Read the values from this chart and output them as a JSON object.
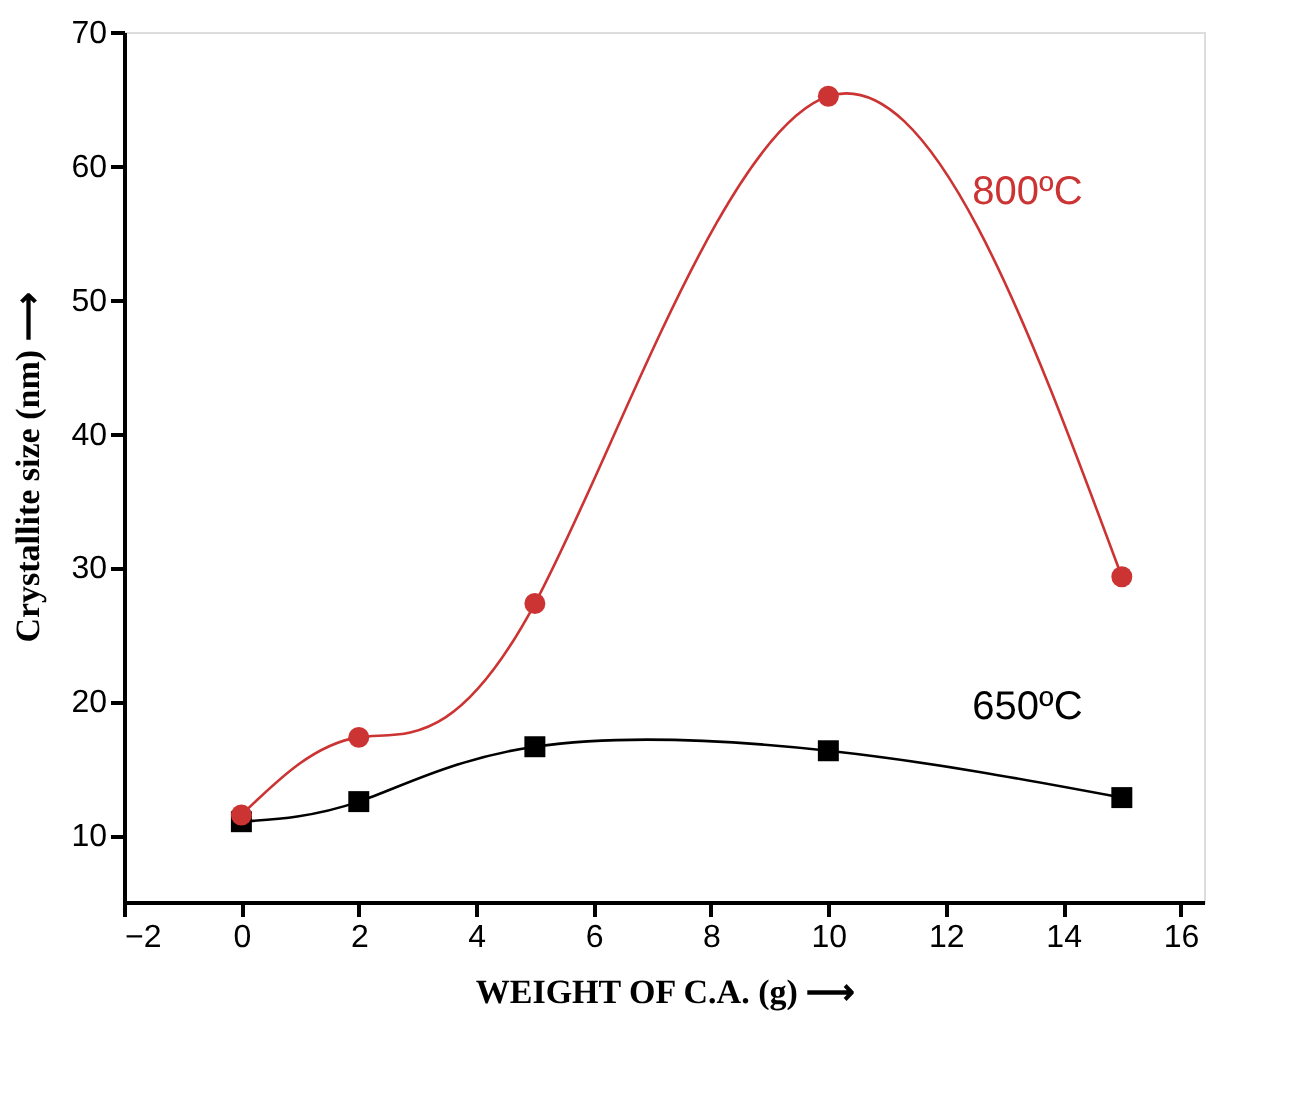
{
  "chart_data": {
    "type": "line",
    "xlabel": "WEIGHT OF C.A. (g) ⟶",
    "ylabel": "Crystallite size (nm) ⟶",
    "x": [
      0,
      2,
      5,
      10,
      15
    ],
    "series": [
      {
        "name": "800ºC",
        "color": "#cc3333",
        "marker": "circle",
        "values": [
          11.5,
          17.3,
          27.3,
          65.2,
          29.3
        ]
      },
      {
        "name": "650ºC",
        "color": "#000000",
        "marker": "square",
        "values": [
          11.0,
          12.5,
          16.6,
          16.3,
          12.8
        ]
      }
    ],
    "xlim": [
      -2,
      16.4
    ],
    "xticks": [
      -2,
      0,
      2,
      4,
      6,
      8,
      10,
      12,
      14,
      16
    ],
    "ylim": [
      5,
      70
    ],
    "yticks": [
      10,
      20,
      30,
      40,
      50,
      60,
      70
    ],
    "grid": false,
    "line_style": "solid"
  }
}
